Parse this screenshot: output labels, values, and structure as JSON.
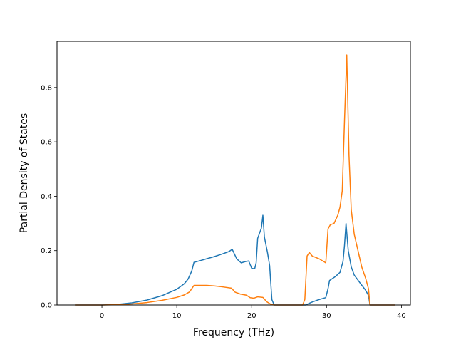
{
  "chart_data": {
    "type": "line",
    "title": "",
    "xlabel": "Frequency (THz)",
    "ylabel": "Partial Density of States",
    "xlim": [
      -6,
      41.2
    ],
    "ylim": [
      0,
      0.97
    ],
    "xticks": [
      0,
      10,
      20,
      30,
      40
    ],
    "yticks": [
      0.0,
      0.2,
      0.4,
      0.6,
      0.8
    ],
    "xtick_labels": [
      "0",
      "10",
      "20",
      "30",
      "40"
    ],
    "ytick_labels": [
      "0.0",
      "0.2",
      "0.4",
      "0.6",
      "0.8"
    ],
    "grid": false,
    "legend": "none",
    "series": [
      {
        "color": "#1f77b4",
        "points": [
          [
            -3.6,
            0
          ],
          [
            0,
            0
          ],
          [
            2,
            0.002
          ],
          [
            4,
            0.008
          ],
          [
            6,
            0.018
          ],
          [
            8,
            0.034
          ],
          [
            10,
            0.058
          ],
          [
            11,
            0.078
          ],
          [
            11.5,
            0.095
          ],
          [
            12,
            0.125
          ],
          [
            12.3,
            0.157
          ],
          [
            13,
            0.162
          ],
          [
            14,
            0.17
          ],
          [
            15,
            0.178
          ],
          [
            16,
            0.187
          ],
          [
            17,
            0.197
          ],
          [
            17.4,
            0.205
          ],
          [
            18,
            0.17
          ],
          [
            18.6,
            0.155
          ],
          [
            19.2,
            0.16
          ],
          [
            19.6,
            0.162
          ],
          [
            20,
            0.135
          ],
          [
            20.4,
            0.133
          ],
          [
            20.6,
            0.155
          ],
          [
            20.8,
            0.245
          ],
          [
            21.3,
            0.283
          ],
          [
            21.5,
            0.33
          ],
          [
            21.7,
            0.25
          ],
          [
            22.1,
            0.195
          ],
          [
            22.4,
            0.145
          ],
          [
            22.7,
            0.02
          ],
          [
            23,
            0
          ],
          [
            27.2,
            0
          ],
          [
            28,
            0.01
          ],
          [
            29,
            0.02
          ],
          [
            29.9,
            0.027
          ],
          [
            30.2,
            0.06
          ],
          [
            30.4,
            0.09
          ],
          [
            31.2,
            0.105
          ],
          [
            31.8,
            0.12
          ],
          [
            32.2,
            0.16
          ],
          [
            32.4,
            0.22
          ],
          [
            32.6,
            0.3
          ],
          [
            32.9,
            0.2
          ],
          [
            33.3,
            0.14
          ],
          [
            33.7,
            0.11
          ],
          [
            34.5,
            0.08
          ],
          [
            35.2,
            0.055
          ],
          [
            35.6,
            0.035
          ],
          [
            35.8,
            0
          ],
          [
            39.2,
            0
          ]
        ]
      },
      {
        "color": "#ff7f0e",
        "points": [
          [
            -3.6,
            0
          ],
          [
            0,
            0
          ],
          [
            2,
            0.001
          ],
          [
            4,
            0.004
          ],
          [
            6,
            0.009
          ],
          [
            8,
            0.017
          ],
          [
            10,
            0.028
          ],
          [
            11,
            0.037
          ],
          [
            11.7,
            0.048
          ],
          [
            12.3,
            0.072
          ],
          [
            14,
            0.072
          ],
          [
            15,
            0.07
          ],
          [
            16,
            0.067
          ],
          [
            17.3,
            0.062
          ],
          [
            17.8,
            0.047
          ],
          [
            18.5,
            0.04
          ],
          [
            19.3,
            0.036
          ],
          [
            19.8,
            0.027
          ],
          [
            20.3,
            0.025
          ],
          [
            20.8,
            0.03
          ],
          [
            21.5,
            0.028
          ],
          [
            22,
            0.012
          ],
          [
            22.6,
            0.002
          ],
          [
            23,
            0
          ],
          [
            26.8,
            0
          ],
          [
            27.1,
            0.02
          ],
          [
            27.4,
            0.18
          ],
          [
            27.7,
            0.193
          ],
          [
            28.1,
            0.18
          ],
          [
            29,
            0.17
          ],
          [
            29.9,
            0.155
          ],
          [
            30.2,
            0.28
          ],
          [
            30.5,
            0.295
          ],
          [
            31,
            0.3
          ],
          [
            31.5,
            0.33
          ],
          [
            31.8,
            0.36
          ],
          [
            32.1,
            0.42
          ],
          [
            32.4,
            0.68
          ],
          [
            32.7,
            0.92
          ],
          [
            33,
            0.55
          ],
          [
            33.3,
            0.35
          ],
          [
            33.7,
            0.26
          ],
          [
            34.2,
            0.2
          ],
          [
            34.7,
            0.14
          ],
          [
            35.2,
            0.1
          ],
          [
            35.6,
            0.06
          ],
          [
            35.8,
            0
          ],
          [
            39.2,
            0
          ]
        ]
      }
    ]
  }
}
